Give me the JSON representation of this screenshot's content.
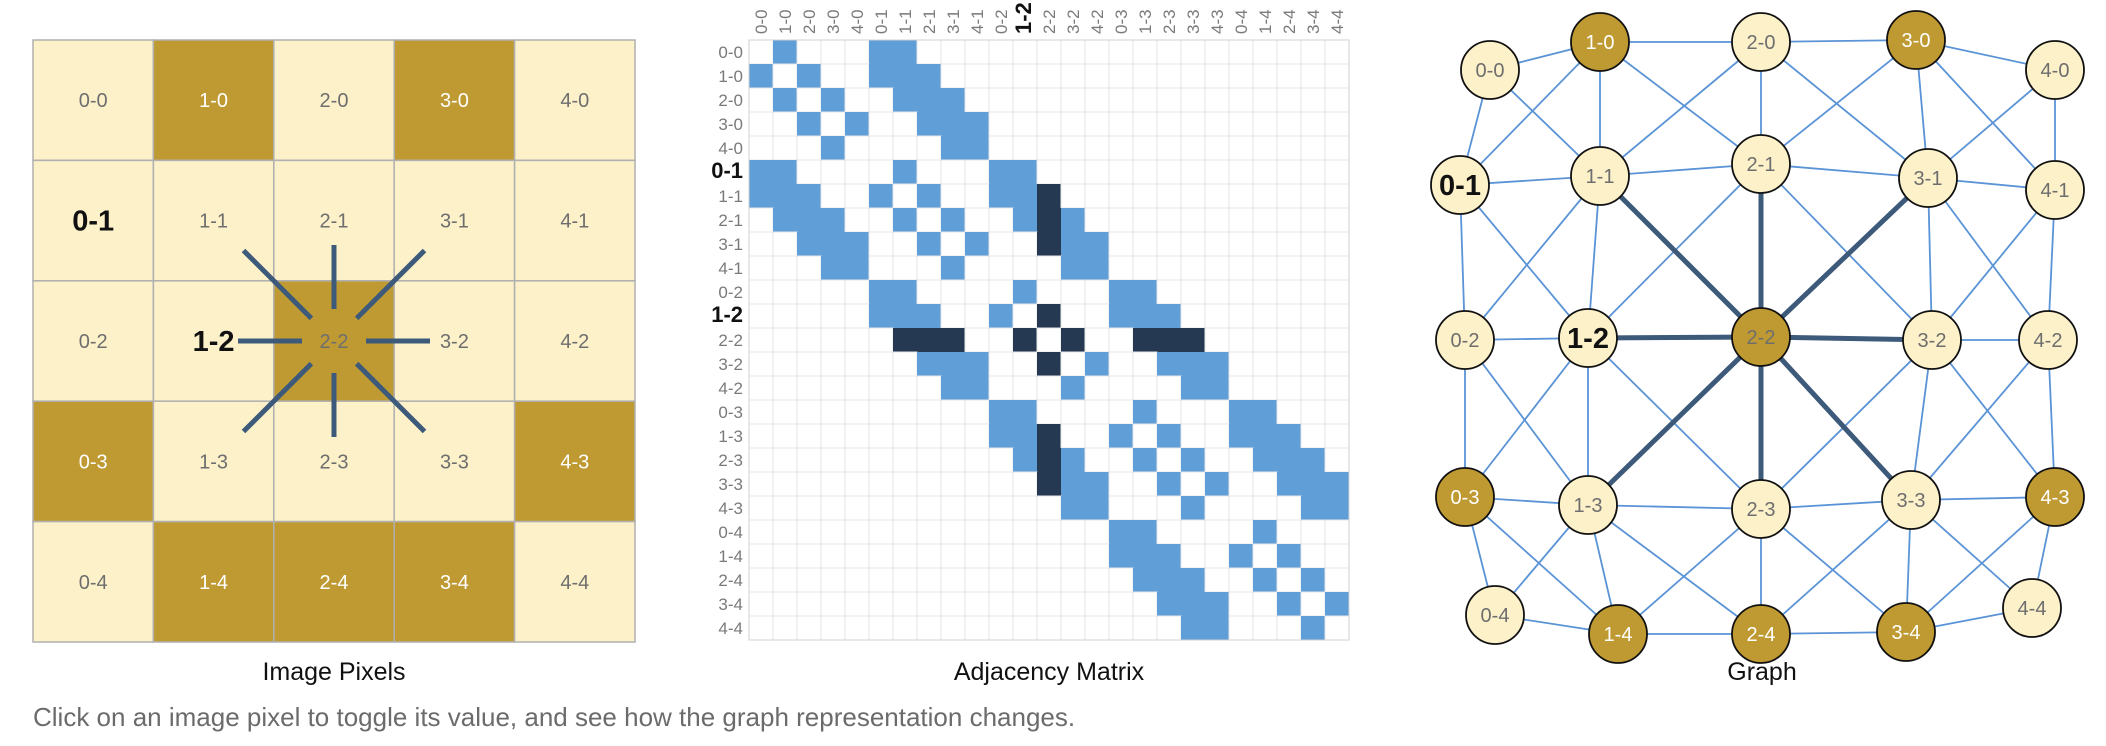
{
  "captions": {
    "image": "Image Pixels",
    "matrix": "Adjacency Matrix",
    "graph": "Graph"
  },
  "instruction": "Click on an image pixel to toggle its value, and see how the graph representation changes.",
  "grid": {
    "size": 5,
    "dark_pixels": [
      "1-0",
      "3-0",
      "2-2",
      "0-3",
      "4-3",
      "1-4",
      "2-4",
      "3-4"
    ],
    "selected_pixel": "2-2",
    "highlighted_labels": [
      "0-1",
      "1-2"
    ]
  },
  "matrix": {
    "order": [
      "0-0",
      "1-0",
      "2-0",
      "3-0",
      "4-0",
      "0-1",
      "1-1",
      "2-1",
      "3-1",
      "4-1",
      "0-2",
      "1-2",
      "2-2",
      "3-2",
      "4-2",
      "0-3",
      "1-3",
      "2-3",
      "3-3",
      "4-3",
      "0-4",
      "1-4",
      "2-4",
      "3-4",
      "4-4"
    ],
    "highlighted_label": "1-2"
  },
  "colors": {
    "light_pixel": "#fcf1c9",
    "dark_pixel": "#bf9a33",
    "grid_line": "#b0b0b0",
    "edge": "#5a93d6",
    "edge_highlight": "#3d5a7a",
    "matrix_cell": "#609ed8",
    "matrix_cell_highlight": "#253a52",
    "label_light": "#6e6e6e",
    "label_on_dark": "#ffffff"
  }
}
